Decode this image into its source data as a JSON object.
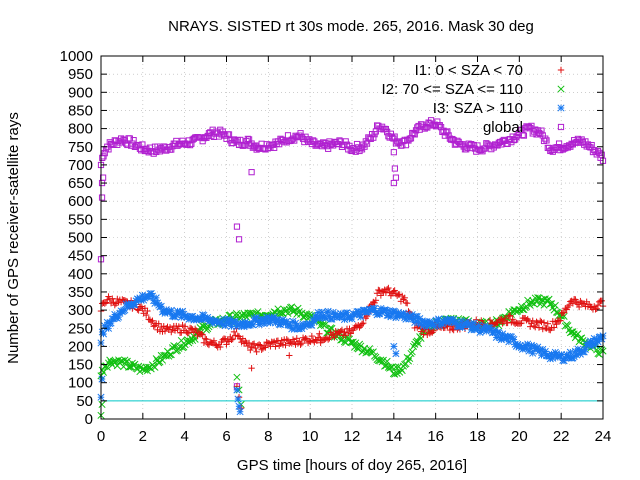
{
  "chart_data": {
    "type": "scatter",
    "title": "NRAYS. SISTED rt 30s mode. 265, 2016. Mask 30 deg",
    "xlabel": "GPS time [hours of doy 265, 2016]",
    "ylabel": "Number of GPS receiver-satellite rays",
    "xlim": [
      0,
      24
    ],
    "ylim": [
      0,
      1000
    ],
    "x_ticks": [
      0,
      2,
      4,
      6,
      8,
      10,
      12,
      14,
      16,
      18,
      20,
      22,
      24
    ],
    "y_ticks": [
      0,
      50,
      100,
      150,
      200,
      250,
      300,
      350,
      400,
      450,
      500,
      550,
      600,
      650,
      700,
      750,
      800,
      850,
      900,
      950,
      1000
    ],
    "grid": true,
    "legend_position": "top-right",
    "threshold_line": {
      "y": 50,
      "color": "#00c8c8"
    },
    "series": [
      {
        "name": "I1: 0 < SZA < 70",
        "marker": "plus",
        "color": "#e01010",
        "x": [
          0,
          0.1,
          0.3,
          0.6,
          1.0,
          1.5,
          1.8,
          2.2,
          2.6,
          3.0,
          3.5,
          4.0,
          4.5,
          5.0,
          5.5,
          6.0,
          6.5,
          7.0,
          7.5,
          8.0,
          8.5,
          9.0,
          9.5,
          10.0,
          10.5,
          11.0,
          11.5,
          12.0,
          12.5,
          13.0,
          13.3,
          13.6,
          14.0,
          14.5,
          15.0,
          15.5,
          16.0,
          16.5,
          17.0,
          17.5,
          18.0,
          18.5,
          19.0,
          19.5,
          20.0,
          20.5,
          21.0,
          21.5,
          22.0,
          22.5,
          23.0,
          23.5,
          24.0
        ],
        "y": [
          300,
          320,
          330,
          325,
          320,
          315,
          310,
          290,
          260,
          245,
          245,
          250,
          240,
          215,
          205,
          215,
          240,
          200,
          195,
          205,
          210,
          210,
          215,
          220,
          225,
          230,
          235,
          240,
          270,
          320,
          350,
          355,
          345,
          330,
          260,
          240,
          250,
          250,
          255,
          260,
          265,
          260,
          270,
          275,
          270,
          265,
          260,
          255,
          280,
          330,
          315,
          310,
          320
        ]
      },
      {
        "name": "I2: 70 <= SZA <= 110",
        "marker": "x",
        "color": "#10c010",
        "x": [
          0,
          0.2,
          0.5,
          1.0,
          1.5,
          2.0,
          2.5,
          3.0,
          3.5,
          4.0,
          4.5,
          5.0,
          5.5,
          6.0,
          6.5,
          7.0,
          7.5,
          8.0,
          8.5,
          9.0,
          9.5,
          10.0,
          10.5,
          11.0,
          11.5,
          12.0,
          12.5,
          13.0,
          13.5,
          14.0,
          14.5,
          15.0,
          15.5,
          16.0,
          16.5,
          17.0,
          17.5,
          18.0,
          18.5,
          19.0,
          19.5,
          20.0,
          20.5,
          21.0,
          21.5,
          22.0,
          22.5,
          23.0,
          23.5,
          24.0
        ],
        "y": [
          120,
          150,
          160,
          155,
          145,
          135,
          150,
          170,
          195,
          210,
          230,
          255,
          265,
          275,
          280,
          285,
          285,
          290,
          300,
          300,
          295,
          280,
          260,
          240,
          225,
          210,
          195,
          180,
          160,
          130,
          145,
          200,
          245,
          260,
          270,
          270,
          265,
          255,
          260,
          265,
          290,
          305,
          320,
          325,
          320,
          285,
          240,
          215,
          200,
          180
        ]
      },
      {
        "name": "I3: SZA > 110",
        "marker": "star",
        "color": "#1878f0",
        "x": [
          0,
          0.2,
          0.5,
          1.0,
          1.5,
          2.0,
          2.3,
          2.7,
          3.0,
          3.5,
          4.0,
          4.5,
          5.0,
          5.5,
          6.0,
          6.5,
          7.0,
          7.5,
          8.0,
          8.5,
          9.0,
          9.5,
          10.0,
          10.5,
          11.0,
          11.5,
          12.0,
          12.5,
          13.0,
          13.5,
          14.0,
          14.5,
          15.0,
          15.5,
          16.0,
          16.5,
          17.0,
          17.5,
          18.0,
          18.5,
          19.0,
          19.5,
          20.0,
          20.5,
          21.0,
          21.5,
          22.0,
          22.5,
          23.0,
          23.5,
          24.0
        ],
        "y": [
          220,
          250,
          270,
          300,
          320,
          335,
          340,
          320,
          300,
          290,
          285,
          280,
          275,
          270,
          265,
          260,
          265,
          270,
          275,
          270,
          260,
          255,
          265,
          290,
          285,
          280,
          285,
          290,
          300,
          295,
          290,
          285,
          275,
          265,
          265,
          270,
          265,
          260,
          250,
          245,
          230,
          220,
          205,
          195,
          185,
          175,
          170,
          175,
          190,
          210,
          225
        ]
      },
      {
        "name": "global",
        "marker": "square",
        "color": "#b020d0",
        "x": [
          0,
          0.1,
          0.3,
          0.6,
          1.0,
          1.5,
          2.0,
          2.5,
          3.0,
          3.5,
          4.0,
          4.5,
          5.0,
          5.5,
          6.0,
          6.5,
          7.0,
          7.5,
          8.0,
          8.5,
          9.0,
          9.5,
          10.0,
          10.5,
          11.0,
          11.5,
          12.0,
          12.5,
          13.0,
          13.3,
          13.6,
          14.0,
          14.5,
          15.0,
          15.5,
          16.0,
          16.5,
          17.0,
          17.5,
          18.0,
          18.5,
          19.0,
          19.5,
          20.0,
          20.5,
          21.0,
          21.5,
          22.0,
          22.5,
          23.0,
          23.5,
          24.0
        ],
        "y": [
          700,
          730,
          750,
          760,
          770,
          760,
          745,
          740,
          745,
          755,
          760,
          765,
          780,
          790,
          780,
          760,
          765,
          750,
          755,
          760,
          775,
          780,
          760,
          750,
          755,
          760,
          745,
          750,
          780,
          810,
          800,
          770,
          760,
          790,
          810,
          815,
          785,
          760,
          750,
          745,
          750,
          760,
          770,
          785,
          800,
          790,
          745,
          750,
          760,
          765,
          745,
          720
        ]
      }
    ],
    "outliers": {
      "I1: 0 < SZA < 70": {
        "x": [
          6.5,
          6.6,
          6.7,
          7.2,
          9.0,
          10.5
        ],
        "y": [
          90,
          60,
          30,
          140,
          175,
          210
        ]
      },
      "I2: 70 <= SZA <= 110": {
        "x": [
          0,
          0.05,
          6.5,
          6.6,
          6.7
        ],
        "y": [
          10,
          40,
          115,
          80,
          40
        ]
      },
      "I3: SZA > 110": {
        "x": [
          0,
          0.05,
          6.5,
          6.55,
          6.6,
          6.65,
          14.0,
          14.1
        ],
        "y": [
          60,
          110,
          80,
          55,
          35,
          20,
          200,
          180
        ]
      },
      "global": {
        "x": [
          0,
          0.05,
          0.05,
          0.1,
          6.5,
          6.6,
          6.5,
          7.2,
          14.0,
          14.05,
          14.1,
          14.0
        ],
        "y": [
          440,
          610,
          650,
          665,
          530,
          495,
          90,
          680,
          735,
          690,
          665,
          650
        ]
      }
    }
  }
}
